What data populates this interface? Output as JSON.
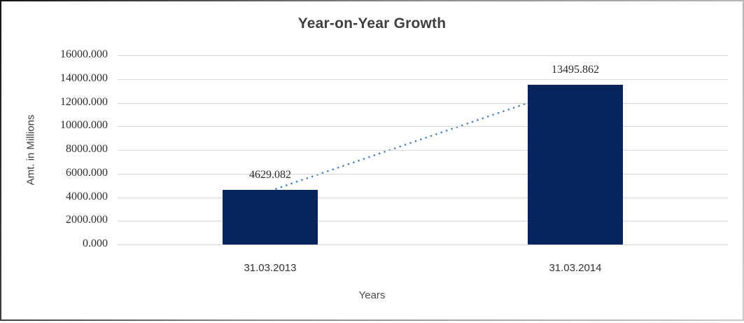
{
  "chart_data": {
    "type": "bar",
    "title": "Year-on-Year Growth",
    "xlabel": "Years",
    "ylabel": "Amt. in Millions",
    "categories": [
      "31.03.2013",
      "31.03.2014"
    ],
    "values": [
      4629.082,
      13495.862
    ],
    "data_labels": [
      "4629.082",
      "13495.862"
    ],
    "y_tick_labels": [
      "16000.000",
      "14000.000",
      "12000.000",
      "10000.000",
      "8000.000",
      "6000.000",
      "4000.000",
      "2000.000",
      "0.000"
    ],
    "ylim": [
      0,
      16000
    ],
    "y_tick_step": 2000,
    "grid": true,
    "legend": false,
    "bar_color": "#07245c",
    "gridline_color": "#d6d6d6",
    "trendline": {
      "style": "dotted",
      "color": "#4f81bd",
      "from": 4629.082,
      "to": 13495.862
    }
  }
}
